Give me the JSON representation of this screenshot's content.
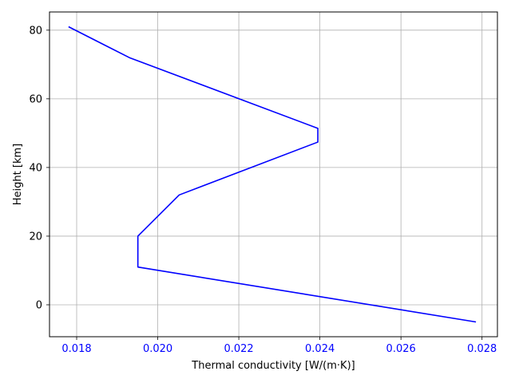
{
  "chart_data": {
    "type": "line",
    "title": "",
    "xlabel": "Thermal conductivity [W/(m·K)]",
    "ylabel": "Height [km]",
    "xlim": [
      0.01733,
      0.02838
    ],
    "ylim": [
      -9.3,
      85.3
    ],
    "xticks": [
      0.018,
      0.02,
      0.022,
      0.024,
      0.026,
      0.028
    ],
    "xtick_labels": [
      "0.018",
      "0.020",
      "0.022",
      "0.024",
      "0.026",
      "0.028"
    ],
    "yticks": [
      0,
      20,
      40,
      60,
      80
    ],
    "ytick_labels": [
      "0",
      "20",
      "40",
      "60",
      "80"
    ],
    "grid": true,
    "legend": "none",
    "series": [
      {
        "x": [
          0.02785,
          0.01951,
          0.01951,
          0.02053,
          0.02395,
          0.02395,
          0.0193,
          0.0178
        ],
        "y": [
          -5,
          11,
          20,
          32,
          47.4,
          51.4,
          72,
          81
        ],
        "color": "#0000ff"
      }
    ],
    "colors": {
      "xtick_color": "#0000ff",
      "ytick_color": "#000000",
      "grid": "#b0b0b0",
      "axes": "#000000"
    }
  }
}
